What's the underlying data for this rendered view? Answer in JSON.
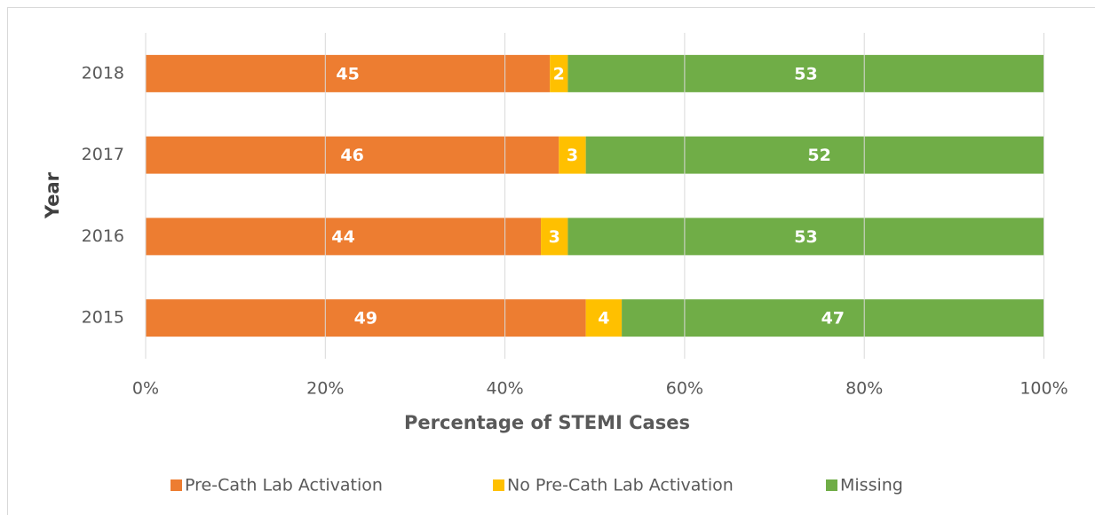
{
  "chart_data": {
    "type": "stacked-bar-horizontal",
    "x_label": "Percentage of STEMI Cases",
    "y_label": "Year",
    "categories": [
      "2015",
      "2016",
      "2017",
      "2018"
    ],
    "series": [
      {
        "name": "Pre-Cath Lab Activation",
        "color": "#ed7d31",
        "values": [
          49,
          44,
          46,
          45
        ]
      },
      {
        "name": "No Pre-Cath Lab Activation",
        "color": "#ffc000",
        "values": [
          4,
          3,
          3,
          2
        ]
      },
      {
        "name": "Missing",
        "color": "#70ad47",
        "values": [
          47,
          53,
          52,
          53
        ]
      }
    ],
    "xlim": [
      0,
      100
    ],
    "xticks": [
      {
        "value": 0,
        "label": "0%"
      },
      {
        "value": 20,
        "label": "20%"
      },
      {
        "value": 40,
        "label": "40%"
      },
      {
        "value": 60,
        "label": "60%"
      },
      {
        "value": 80,
        "label": "80%"
      },
      {
        "value": 100,
        "label": "100%"
      }
    ],
    "grid": true,
    "legend": "bottom"
  }
}
